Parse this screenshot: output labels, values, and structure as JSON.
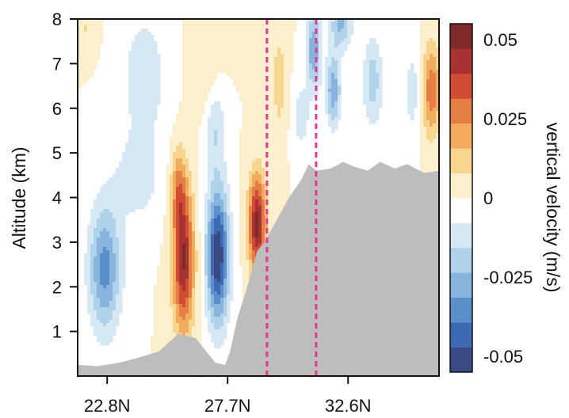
{
  "chart_data": {
    "type": "heatmap",
    "title": "",
    "ylabel": "Altitude (km)",
    "xlabel": "",
    "x_ticks": [
      "22.8N",
      "27.7N",
      "32.6N"
    ],
    "x_tick_values": [
      22.8,
      27.7,
      32.6
    ],
    "y_ticks": [
      "1",
      "2",
      "3",
      "4",
      "5",
      "6",
      "7",
      "8"
    ],
    "y_tick_values": [
      1,
      2,
      3,
      4,
      5,
      6,
      7,
      8
    ],
    "xlim": [
      21.6,
      36.3
    ],
    "ylim": [
      0,
      8
    ],
    "vertical_markers_lat": [
      29.3,
      31.3
    ],
    "marker_color": "#e8349a",
    "terrain_color": "#bdbdbd",
    "terrain_profile": {
      "lat": [
        21.6,
        22.4,
        23.3,
        24.0,
        24.9,
        25.7,
        26.4,
        27.2,
        27.6,
        27.8,
        28.1,
        28.5,
        28.9,
        29.2,
        29.5,
        29.9,
        30.2,
        30.7,
        31.0,
        31.3,
        31.9,
        32.4,
        32.8,
        33.4,
        33.9,
        34.5,
        35.0,
        35.7,
        36.3
      ],
      "alt_km": [
        0.25,
        0.22,
        0.3,
        0.4,
        0.55,
        0.95,
        0.85,
        0.3,
        0.25,
        0.55,
        1.3,
        2.0,
        2.8,
        3.0,
        3.3,
        3.7,
        4.0,
        4.4,
        4.75,
        4.6,
        4.65,
        4.8,
        4.7,
        4.6,
        4.8,
        4.65,
        4.75,
        4.55,
        4.6
      ]
    },
    "colorbar": {
      "label": "vertical velocity (m/s)",
      "ticks": [
        "0.05",
        "0.025",
        "0",
        "-0.025",
        "-0.05"
      ],
      "tick_values": [
        0.05,
        0.025,
        0,
        -0.025,
        -0.05
      ],
      "range": [
        -0.055,
        0.055
      ],
      "colors": [
        "#3a4a85",
        "#3f69b3",
        "#5b8fcc",
        "#86b4dc",
        "#b0d1ea",
        "#d6e8f4",
        "#ffffff",
        "#fbefcc",
        "#f8d58d",
        "#f3ac5f",
        "#e47e44",
        "#d24b33",
        "#a83232",
        "#7f2b2b"
      ]
    },
    "features": [
      {
        "lat": 22.7,
        "alt_km": 2.4,
        "w": -0.035,
        "sx": 0.65,
        "sy": 1.4
      },
      {
        "lat": 25.9,
        "alt_km": 2.6,
        "w": 0.048,
        "sx": 0.42,
        "sy": 1.6
      },
      {
        "lat": 25.7,
        "alt_km": 4.2,
        "w": 0.02,
        "sx": 0.3,
        "sy": 0.9
      },
      {
        "lat": 27.3,
        "alt_km": 2.7,
        "w": -0.055,
        "sx": 0.45,
        "sy": 1.5
      },
      {
        "lat": 27.2,
        "alt_km": 5.6,
        "w": -0.015,
        "sx": 0.4,
        "sy": 1.0
      },
      {
        "lat": 28.9,
        "alt_km": 3.4,
        "w": 0.05,
        "sx": 0.35,
        "sy": 1.1
      },
      {
        "lat": 26.8,
        "alt_km": 6.9,
        "w": 0.008,
        "sx": 0.6,
        "sy": 1.0
      },
      {
        "lat": 24.3,
        "alt_km": 6.7,
        "w": -0.014,
        "sx": 0.9,
        "sy": 1.4
      },
      {
        "lat": 24.0,
        "alt_km": 4.4,
        "w": -0.012,
        "sx": 1.0,
        "sy": 1.0
      },
      {
        "lat": 31.2,
        "alt_km": 7.3,
        "w": -0.03,
        "sx": 0.3,
        "sy": 0.9
      },
      {
        "lat": 30.7,
        "alt_km": 5.8,
        "w": -0.012,
        "sx": 0.35,
        "sy": 0.8
      },
      {
        "lat": 32.0,
        "alt_km": 6.4,
        "w": -0.03,
        "sx": 0.3,
        "sy": 0.8
      },
      {
        "lat": 32.3,
        "alt_km": 7.9,
        "w": -0.025,
        "sx": 0.45,
        "sy": 0.6
      },
      {
        "lat": 33.6,
        "alt_km": 6.6,
        "w": -0.02,
        "sx": 0.4,
        "sy": 1.0
      },
      {
        "lat": 35.2,
        "alt_km": 6.4,
        "w": -0.012,
        "sx": 0.3,
        "sy": 1.0
      },
      {
        "lat": 36.0,
        "alt_km": 6.4,
        "w": 0.03,
        "sx": 0.35,
        "sy": 1.0
      },
      {
        "lat": 29.8,
        "alt_km": 6.6,
        "w": 0.012,
        "sx": 0.3,
        "sy": 1.2
      },
      {
        "lat": 21.9,
        "alt_km": 7.8,
        "w": 0.008,
        "sx": 0.4,
        "sy": 0.5
      }
    ]
  }
}
